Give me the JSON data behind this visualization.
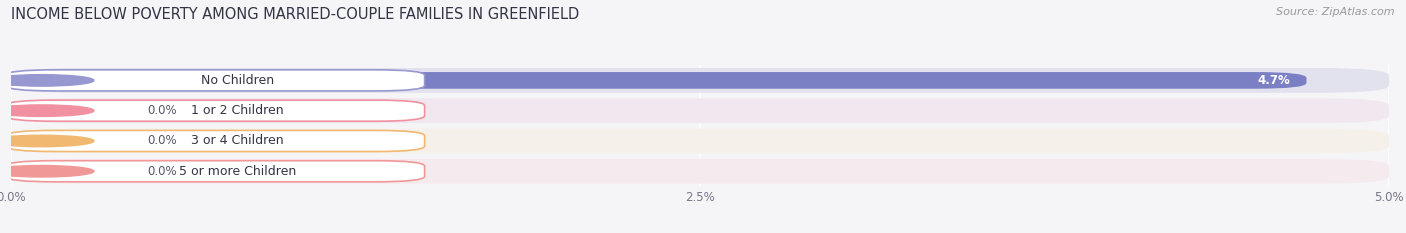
{
  "title": "INCOME BELOW POVERTY AMONG MARRIED-COUPLE FAMILIES IN GREENFIELD",
  "source": "Source: ZipAtlas.com",
  "categories": [
    "No Children",
    "1 or 2 Children",
    "3 or 4 Children",
    "5 or more Children"
  ],
  "values": [
    4.7,
    0.0,
    0.0,
    0.0
  ],
  "bar_colors": [
    "#7b7fc4",
    "#f08898",
    "#f5c080",
    "#f0a0a0"
  ],
  "row_bg_colors": [
    "#e2e2ee",
    "#f0e8ee",
    "#f5f0ea",
    "#f5eaee"
  ],
  "label_dot_colors": [
    "#9898d0",
    "#f090a0",
    "#f0b870",
    "#f09898"
  ],
  "xlim": [
    0,
    5.0
  ],
  "xticks": [
    0.0,
    2.5,
    5.0
  ],
  "xtick_labels": [
    "0.0%",
    "2.5%",
    "5.0%"
  ],
  "background_color": "#f5f5f8",
  "title_fontsize": 10.5,
  "label_fontsize": 9,
  "value_fontsize": 8.5,
  "axis_fontsize": 8.5,
  "source_fontsize": 8
}
